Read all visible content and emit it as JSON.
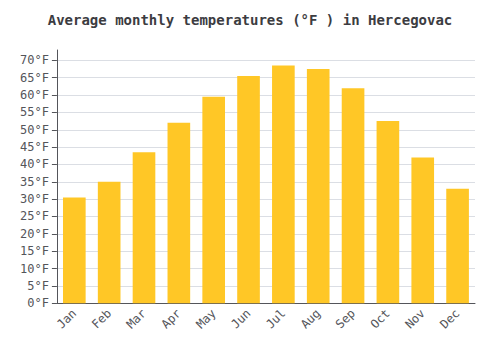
{
  "chart_data": {
    "type": "bar",
    "title": "Average monthly temperatures (°F ) in Hercegovac",
    "categories": [
      "Jan",
      "Feb",
      "Mar",
      "Apr",
      "May",
      "Jun",
      "Jul",
      "Aug",
      "Sep",
      "Oct",
      "Nov",
      "Dec"
    ],
    "values": [
      30.5,
      35.0,
      43.5,
      52.0,
      59.5,
      65.5,
      68.5,
      67.5,
      62.0,
      52.5,
      42.0,
      33.0
    ],
    "color": "#FFC726",
    "ylim": [
      0,
      73
    ],
    "yticks": [
      {
        "value": 0,
        "label": "0°F"
      },
      {
        "value": 5,
        "label": "5°F"
      },
      {
        "value": 10,
        "label": "10°F"
      },
      {
        "value": 15,
        "label": "15°F"
      },
      {
        "value": 20,
        "label": "20°F"
      },
      {
        "value": 25,
        "label": "25°F"
      },
      {
        "value": 30,
        "label": "30°F"
      },
      {
        "value": 35,
        "label": "35°F"
      },
      {
        "value": 40,
        "label": "40°F"
      },
      {
        "value": 45,
        "label": "45°F"
      },
      {
        "value": 50,
        "label": "50°F"
      },
      {
        "value": 55,
        "label": "55°F"
      },
      {
        "value": 60,
        "label": "60°F"
      },
      {
        "value": 65,
        "label": "65°F"
      },
      {
        "value": 70,
        "label": "70°F"
      }
    ],
    "grid": true
  }
}
